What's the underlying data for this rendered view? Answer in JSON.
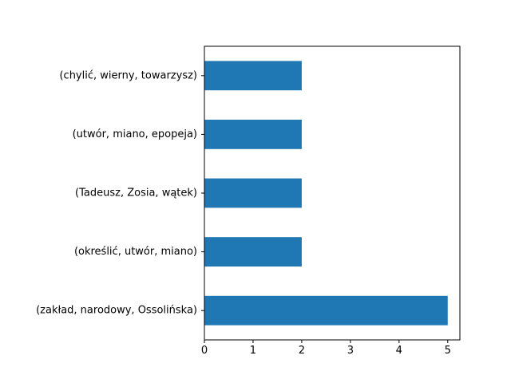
{
  "chart_data": {
    "type": "bar",
    "orientation": "horizontal",
    "categories": [
      "(zakład, narodowy, Ossolińska)",
      "(określić, utwór, miano)",
      "(Tadeusz, Zosia, wątek)",
      "(utwór, miano, epopeja)",
      "(chylić, wierny, towarzysz)"
    ],
    "values": [
      5,
      2,
      2,
      2,
      2
    ],
    "title": "",
    "xlabel": "",
    "ylabel": "",
    "xlim": [
      0,
      5.25
    ],
    "xticks": [
      0,
      1,
      2,
      3,
      4,
      5
    ],
    "grid": false,
    "legend": "none",
    "bar_color": "#1f77b4"
  }
}
